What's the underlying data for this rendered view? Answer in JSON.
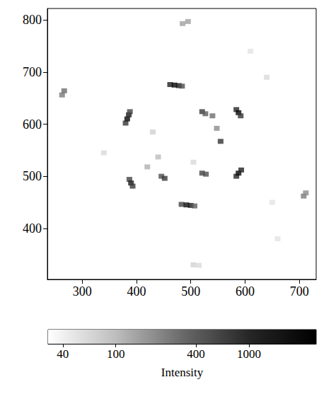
{
  "chart_data": {
    "type": "scatter",
    "x": [
      462,
      470,
      478,
      484,
      380,
      383,
      386,
      388,
      584,
      588,
      592,
      584,
      588,
      593,
      387,
      390,
      393,
      483,
      492,
      500,
      507,
      446,
      452,
      521,
      528,
      521,
      527,
      555,
      548,
      540,
      263,
      267,
      708,
      712,
      485,
      495,
      440,
      505,
      505,
      515,
      640,
      340,
      420,
      610,
      660,
      430,
      650
    ],
    "y": [
      676,
      675,
      674,
      673,
      602,
      610,
      618,
      624,
      628,
      622,
      616,
      500,
      506,
      512,
      494,
      487,
      481,
      446,
      445,
      444,
      443,
      500,
      496,
      506,
      504,
      624,
      620,
      567,
      592,
      616,
      656,
      664,
      462,
      468,
      793,
      797,
      537,
      527,
      330,
      329,
      690,
      545,
      518,
      740,
      380,
      585,
      450
    ],
    "intensity": [
      1200,
      2500,
      1500,
      500,
      800,
      2500,
      1500,
      600,
      1000,
      2500,
      800,
      1000,
      2500,
      1200,
      600,
      1500,
      700,
      600,
      2000,
      1500,
      400,
      500,
      700,
      600,
      500,
      700,
      400,
      800,
      200,
      300,
      250,
      300,
      250,
      200,
      150,
      150,
      100,
      60,
      70,
      60,
      60,
      60,
      120,
      50,
      50,
      70,
      50
    ],
    "xlim": [
      236,
      731
    ],
    "ylim": [
      302,
      822
    ],
    "xticks": [
      300,
      400,
      500,
      600,
      700
    ],
    "yticks": [
      400,
      500,
      600,
      700,
      800
    ],
    "grid": false,
    "colorbar": {
      "label": "Intensity",
      "range": [
        31,
        3200
      ],
      "ticks": [
        40,
        100,
        400,
        1000
      ],
      "log": true
    }
  }
}
